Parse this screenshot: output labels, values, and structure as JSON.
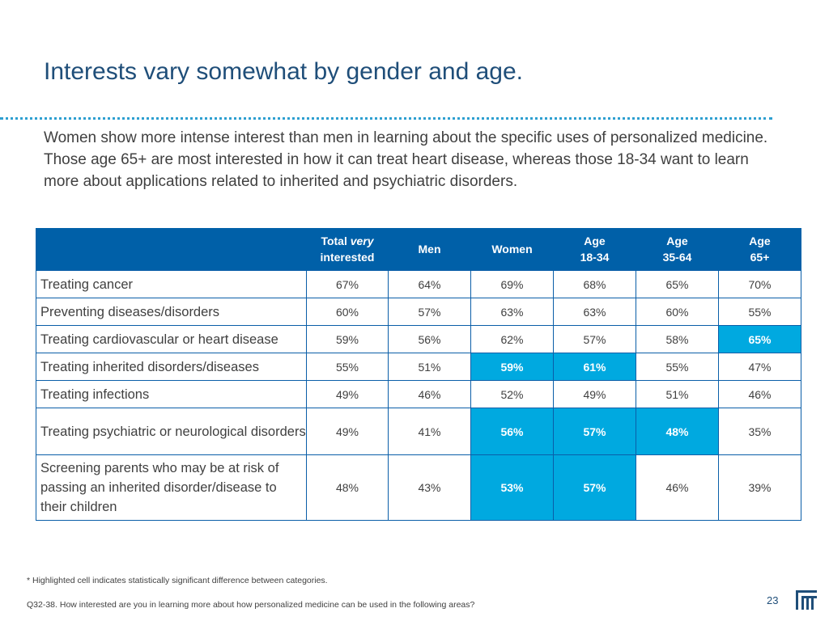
{
  "title": "Interests vary somewhat by gender and age.",
  "subtitle": "Women show more intense interest than men in learning about the specific uses of personalized medicine. Those age 65+ are most interested in how it can treat heart disease, whereas those 18-34 want to learn more about applications related to inherited and psychiatric disorders.",
  "table": {
    "headers": {
      "total_pre": "Total ",
      "total_em": "very",
      "total_post": "interested",
      "men": "Men",
      "women": "Women",
      "age1_l1": "Age",
      "age1_l2": "18-34",
      "age2_l1": "Age",
      "age2_l2": "35-64",
      "age3_l1": "Age",
      "age3_l2": "65+"
    },
    "rows": [
      {
        "label": "Treating cancer",
        "values": [
          "67%",
          "64%",
          "69%",
          "68%",
          "65%",
          "70%"
        ],
        "highlight": [
          false,
          false,
          false,
          false,
          false,
          false
        ]
      },
      {
        "label": "Preventing diseases/disorders",
        "values": [
          "60%",
          "57%",
          "63%",
          "63%",
          "60%",
          "55%"
        ],
        "highlight": [
          false,
          false,
          false,
          false,
          false,
          false
        ]
      },
      {
        "label": "Treating cardiovascular or heart disease",
        "values": [
          "59%",
          "56%",
          "62%",
          "57%",
          "58%",
          "65%"
        ],
        "highlight": [
          false,
          false,
          false,
          false,
          false,
          true
        ]
      },
      {
        "label": "Treating inherited disorders/diseases",
        "values": [
          "55%",
          "51%",
          "59%",
          "61%",
          "55%",
          "47%"
        ],
        "highlight": [
          false,
          false,
          true,
          true,
          false,
          false
        ]
      },
      {
        "label": "Treating infections",
        "values": [
          "49%",
          "46%",
          "52%",
          "49%",
          "51%",
          "46%"
        ],
        "highlight": [
          false,
          false,
          false,
          false,
          false,
          false
        ]
      },
      {
        "label": "Treating psychiatric or neurological disorders",
        "values": [
          "49%",
          "41%",
          "56%",
          "57%",
          "48%",
          "35%"
        ],
        "highlight": [
          false,
          false,
          true,
          true,
          true,
          false
        ]
      },
      {
        "label": "Screening parents who may be at risk of passing an inherited disorder/disease to their children",
        "values": [
          "48%",
          "43%",
          "53%",
          "57%",
          "46%",
          "39%"
        ],
        "highlight": [
          false,
          false,
          true,
          true,
          false,
          false
        ]
      }
    ]
  },
  "footnote": "* Highlighted cell indicates statistically significant difference between categories.",
  "source": "Q32-38. How interested are you in learning more about how personalized medicine can be used in the following areas?",
  "page_number": "23",
  "colors": {
    "header_bg": "#0060a8",
    "highlight": "#00a9e0",
    "title": "#1f4e79",
    "dotted_rule": "#2e9fd0"
  },
  "logo_icon": "company-logo-icon"
}
